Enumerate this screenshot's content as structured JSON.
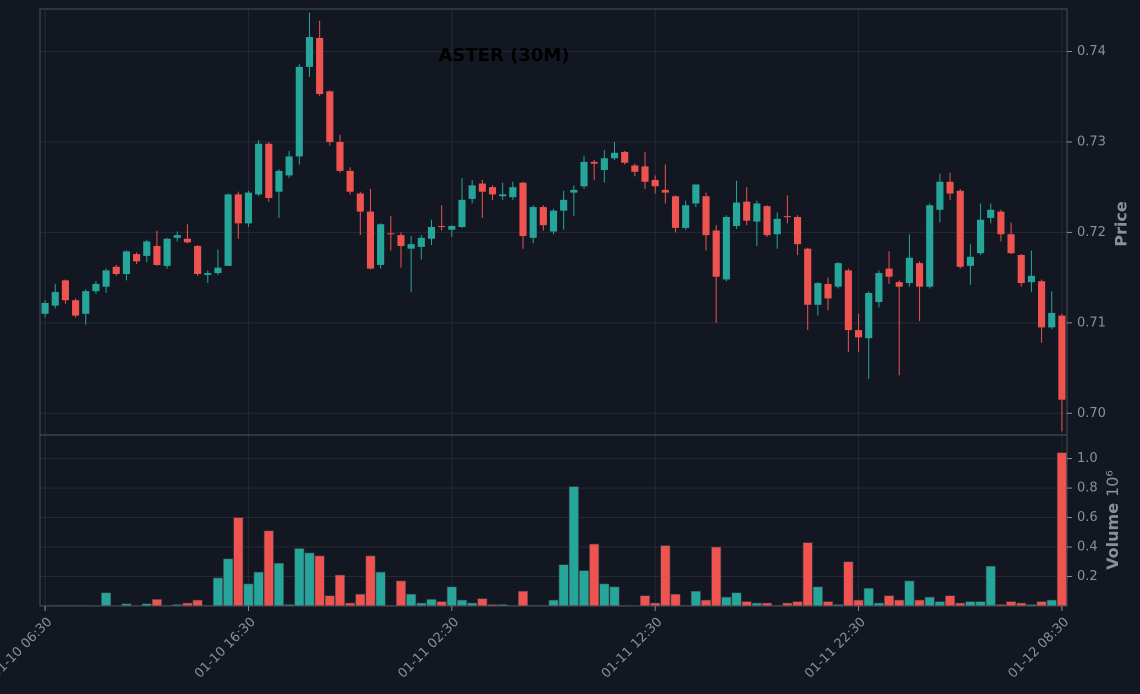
{
  "chart_data": {
    "type": "candlestick",
    "title": "ASTER (30M)",
    "y_label": "Price",
    "volume_label": "Volume",
    "volume_offset": "10⁶",
    "up_color": "#26a69a",
    "down_color": "#ef5350",
    "grid": true,
    "xlim": [
      -0.5,
      100.5
    ],
    "xticks": [
      {
        "value": 0,
        "label": "01-10 06:30"
      },
      {
        "value": 20,
        "label": "01-10 16:30"
      },
      {
        "value": 40,
        "label": "01-11 02:30"
      },
      {
        "value": 60,
        "label": "01-11 12:30"
      },
      {
        "value": 80,
        "label": "01-11 22:30"
      },
      {
        "value": 100,
        "label": "01-12 08:30"
      }
    ],
    "ylim": [
      0.6976,
      0.7447
    ],
    "yticks": [
      {
        "value": 0.7,
        "label": "0.70"
      },
      0.71,
      0.72,
      0.73,
      0.74
    ],
    "y2lim": [
      0,
      1.16
    ],
    "y2ticks": [
      0.2,
      0.4,
      0.6,
      0.8,
      {
        "value": 1.0,
        "label": "1.0"
      }
    ],
    "open": [
      0.711,
      0.7119,
      0.7147,
      0.7125,
      0.711,
      0.7135,
      0.714,
      0.7162,
      0.7154,
      0.7176,
      0.7174,
      0.7185,
      0.7163,
      0.7194,
      0.7193,
      0.7185,
      0.7153,
      0.7155,
      0.7163,
      0.7242,
      0.721,
      0.7242,
      0.7298,
      0.7245,
      0.7263,
      0.7284,
      0.7383,
      0.7415,
      0.7356,
      0.73,
      0.7268,
      0.7243,
      0.7223,
      0.7164,
      0.7199,
      0.7197,
      0.7182,
      0.7184,
      0.7193,
      0.7207,
      0.7203,
      0.7206,
      0.7237,
      0.7254,
      0.725,
      0.724,
      0.7239,
      0.7255,
      0.7194,
      0.7228,
      0.7201,
      0.7224,
      0.7244,
      0.7251,
      0.7278,
      0.7269,
      0.7282,
      0.7289,
      0.7274,
      0.7273,
      0.7258,
      0.7247,
      0.724,
      0.7205,
      0.7232,
      0.724,
      0.7202,
      0.7148,
      0.7207,
      0.7234,
      0.7212,
      0.7229,
      0.7198,
      0.7218,
      0.7217,
      0.7182,
      0.712,
      0.7143,
      0.714,
      0.7158,
      0.7092,
      0.7083,
      0.7123,
      0.716,
      0.7145,
      0.7144,
      0.7166,
      0.714,
      0.7225,
      0.7256,
      0.7246,
      0.7163,
      0.7177,
      0.7216,
      0.7223,
      0.7198,
      0.7175,
      0.7145,
      0.7146,
      0.7095,
      0.7108
    ],
    "high": [
      0.7125,
      0.7143,
      0.7148,
      0.7127,
      0.7137,
      0.7146,
      0.716,
      0.7164,
      0.718,
      0.7178,
      0.7192,
      0.7202,
      0.7194,
      0.7201,
      0.7209,
      0.7186,
      0.7158,
      0.7181,
      0.7243,
      0.7245,
      0.7246,
      0.7302,
      0.73,
      0.727,
      0.729,
      0.7386,
      0.7443,
      0.7434,
      0.7357,
      0.7308,
      0.7272,
      0.7245,
      0.7248,
      0.721,
      0.7218,
      0.72,
      0.7196,
      0.7197,
      0.7214,
      0.723,
      0.7208,
      0.726,
      0.7258,
      0.7258,
      0.7252,
      0.7255,
      0.7256,
      0.7256,
      0.723,
      0.723,
      0.7226,
      0.7246,
      0.7252,
      0.7285,
      0.728,
      0.7291,
      0.73,
      0.729,
      0.7276,
      0.7289,
      0.7263,
      0.7275,
      0.7241,
      0.7235,
      0.7253,
      0.7244,
      0.7208,
      0.7219,
      0.7257,
      0.725,
      0.7235,
      0.723,
      0.7222,
      0.7241,
      0.7219,
      0.7183,
      0.7145,
      0.715,
      0.7167,
      0.716,
      0.711,
      0.7135,
      0.7158,
      0.7179,
      0.7147,
      0.7198,
      0.7168,
      0.7232,
      0.7265,
      0.7266,
      0.7248,
      0.7187,
      0.7232,
      0.7232,
      0.7225,
      0.7211,
      0.7176,
      0.718,
      0.7148,
      0.7135,
      0.711
    ],
    "low": [
      0.7106,
      0.7116,
      0.7121,
      0.7106,
      0.7098,
      0.7132,
      0.7133,
      0.7152,
      0.7147,
      0.7165,
      0.7167,
      0.7163,
      0.716,
      0.719,
      0.7188,
      0.7152,
      0.7144,
      0.7153,
      0.7163,
      0.7193,
      0.7206,
      0.724,
      0.7234,
      0.7216,
      0.726,
      0.7275,
      0.7372,
      0.7351,
      0.7296,
      0.7266,
      0.7242,
      0.7197,
      0.7159,
      0.716,
      0.718,
      0.7161,
      0.7134,
      0.717,
      0.7186,
      0.7202,
      0.7195,
      0.7205,
      0.7232,
      0.7216,
      0.7236,
      0.7236,
      0.7236,
      0.7182,
      0.7188,
      0.7202,
      0.7198,
      0.7203,
      0.7218,
      0.7248,
      0.7258,
      0.7255,
      0.728,
      0.7275,
      0.7262,
      0.7248,
      0.7243,
      0.7232,
      0.72,
      0.7203,
      0.7228,
      0.718,
      0.71,
      0.7146,
      0.7204,
      0.7208,
      0.7185,
      0.7195,
      0.7182,
      0.721,
      0.7175,
      0.7092,
      0.7108,
      0.7114,
      0.7138,
      0.7068,
      0.7068,
      0.7038,
      0.7117,
      0.7143,
      0.7042,
      0.714,
      0.7102,
      0.7138,
      0.7211,
      0.7236,
      0.716,
      0.7142,
      0.7175,
      0.721,
      0.719,
      0.7176,
      0.714,
      0.7134,
      0.7078,
      0.7093,
      0.698
    ],
    "close": [
      0.7122,
      0.7134,
      0.7125,
      0.7108,
      0.7135,
      0.7143,
      0.7158,
      0.7154,
      0.7179,
      0.7168,
      0.719,
      0.7164,
      0.7193,
      0.7197,
      0.7189,
      0.7154,
      0.7155,
      0.7161,
      0.7242,
      0.721,
      0.7244,
      0.7298,
      0.7238,
      0.7268,
      0.7284,
      0.7383,
      0.7416,
      0.7353,
      0.73,
      0.7268,
      0.7245,
      0.7223,
      0.716,
      0.7209,
      0.7198,
      0.7185,
      0.7187,
      0.7194,
      0.7206,
      0.7206,
      0.7207,
      0.7236,
      0.7252,
      0.7245,
      0.7242,
      0.7242,
      0.725,
      0.7196,
      0.7228,
      0.7208,
      0.7224,
      0.7236,
      0.7247,
      0.7278,
      0.7276,
      0.7282,
      0.7288,
      0.7277,
      0.7267,
      0.7256,
      0.7251,
      0.7244,
      0.7205,
      0.723,
      0.7253,
      0.7197,
      0.7151,
      0.7217,
      0.7233,
      0.7213,
      0.7232,
      0.7197,
      0.7215,
      0.7217,
      0.7187,
      0.712,
      0.7144,
      0.7127,
      0.7166,
      0.7092,
      0.7084,
      0.7133,
      0.7155,
      0.7151,
      0.714,
      0.7172,
      0.714,
      0.723,
      0.7256,
      0.7243,
      0.7162,
      0.7173,
      0.7214,
      0.7225,
      0.7198,
      0.7177,
      0.7144,
      0.7152,
      0.7095,
      0.7111,
      0.7015
    ],
    "volume": [
      0.003,
      0.005,
      0.005,
      0.005,
      0.005,
      0.003,
      0.09,
      0.003,
      0.015,
      0.003,
      0.015,
      0.045,
      0.005,
      0.01,
      0.02,
      0.04,
      0.005,
      0.19,
      0.32,
      0.6,
      0.15,
      0.23,
      0.51,
      0.29,
      0.01,
      0.39,
      0.36,
      0.34,
      0.07,
      0.21,
      0.02,
      0.08,
      0.34,
      0.23,
      0.005,
      0.17,
      0.08,
      0.02,
      0.045,
      0.03,
      0.13,
      0.04,
      0.02,
      0.05,
      0.01,
      0.01,
      0.005,
      0.1,
      0.005,
      0.005,
      0.04,
      0.28,
      0.81,
      0.24,
      0.42,
      0.15,
      0.13,
      0.005,
      0.003,
      0.07,
      0.02,
      0.41,
      0.08,
      0.005,
      0.1,
      0.04,
      0.4,
      0.06,
      0.09,
      0.03,
      0.02,
      0.02,
      0.005,
      0.02,
      0.03,
      0.43,
      0.13,
      0.03,
      0.01,
      0.3,
      0.04,
      0.12,
      0.02,
      0.07,
      0.04,
      0.17,
      0.04,
      0.06,
      0.03,
      0.07,
      0.02,
      0.03,
      0.03,
      0.27,
      0.01,
      0.03,
      0.02,
      0.01,
      0.03,
      0.04,
      1.04
    ]
  }
}
